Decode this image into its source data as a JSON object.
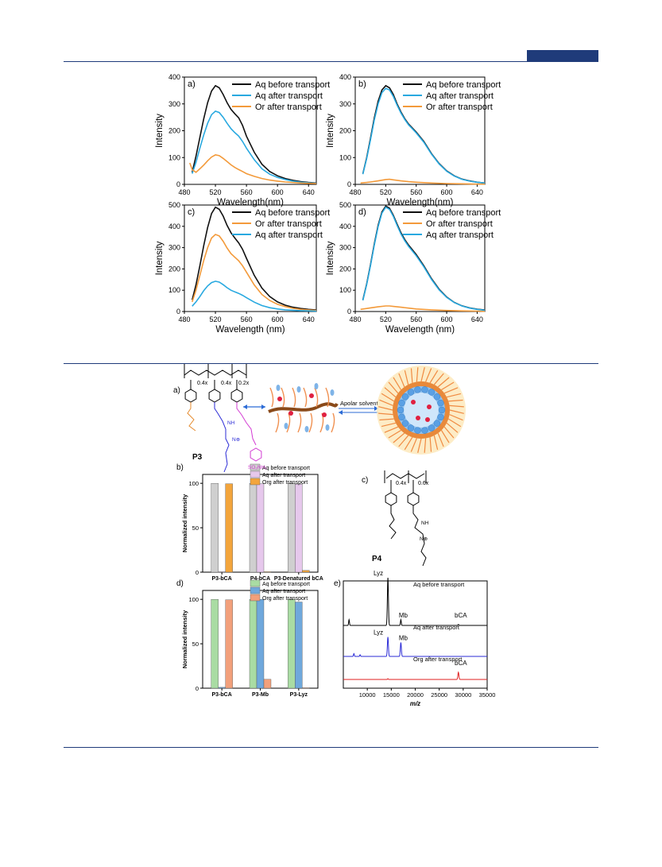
{
  "colors": {
    "black": "#111111",
    "blue": "#29a9e0",
    "orange": "#f39a3a",
    "rule": "#1f3b7a",
    "grey_bar": "#cfcfcf",
    "pink_bar": "#e6c8ec",
    "orange_bar": "#f3a53c",
    "green_bar": "#a9dca3",
    "blue_bar": "#6fa8dc",
    "salmon_bar": "#f2a07b",
    "ms_black": "#000000",
    "ms_blue": "#2b2bd6",
    "ms_red": "#e02020"
  },
  "chart_data": [
    {
      "panel": "a)",
      "type": "line",
      "xlabel": "Wavelength(nm)",
      "ylabel": "Intensity",
      "xlim": [
        480,
        650
      ],
      "ylim": [
        0,
        400
      ],
      "xticks": [
        "480",
        "520",
        "560",
        "600",
        "640"
      ],
      "yticks": [
        "0",
        "100",
        "200",
        "300",
        "400"
      ],
      "series": [
        {
          "name": "Aq before transport",
          "color": "black",
          "x": [
            490,
            495,
            500,
            505,
            510,
            515,
            520,
            525,
            530,
            535,
            540,
            545,
            550,
            555,
            560,
            570,
            580,
            590,
            600,
            610,
            620,
            630,
            640,
            650
          ],
          "y": [
            45,
            105,
            175,
            245,
            305,
            348,
            368,
            360,
            335,
            305,
            280,
            263,
            248,
            220,
            180,
            120,
            75,
            48,
            32,
            22,
            15,
            10,
            7,
            5
          ]
        },
        {
          "name": "Aq after transport",
          "color": "blue",
          "x": [
            490,
            495,
            500,
            505,
            510,
            515,
            520,
            525,
            530,
            535,
            540,
            545,
            550,
            555,
            560,
            570,
            580,
            590,
            600,
            610,
            620,
            630,
            640,
            650
          ],
          "y": [
            40,
            82,
            135,
            185,
            228,
            260,
            273,
            268,
            250,
            228,
            208,
            193,
            180,
            160,
            135,
            92,
            58,
            38,
            26,
            18,
            12,
            8,
            6,
            4
          ]
        },
        {
          "name": "Or after transport",
          "color": "orange",
          "x": [
            487,
            490,
            495,
            500,
            505,
            510,
            515,
            520,
            525,
            530,
            535,
            540,
            545,
            550,
            555,
            560,
            570,
            580,
            590,
            600,
            610,
            620,
            630,
            640,
            650
          ],
          "y": [
            80,
            55,
            45,
            58,
            72,
            88,
            102,
            110,
            107,
            97,
            85,
            73,
            63,
            55,
            48,
            40,
            30,
            22,
            16,
            12,
            9,
            7,
            5,
            4,
            3
          ]
        }
      ]
    },
    {
      "panel": "b)",
      "type": "line",
      "xlabel": "Wavelength(nm)",
      "ylabel": "Intensity",
      "xlim": [
        480,
        650
      ],
      "ylim": [
        0,
        400
      ],
      "xticks": [
        "480",
        "520",
        "560",
        "600",
        "640"
      ],
      "yticks": [
        "0",
        "100",
        "200",
        "300",
        "400"
      ],
      "series": [
        {
          "name": "Aq before transport",
          "color": "black",
          "x": [
            490,
            495,
            500,
            505,
            510,
            515,
            520,
            525,
            530,
            535,
            540,
            545,
            550,
            555,
            560,
            570,
            580,
            590,
            600,
            610,
            620,
            630,
            640,
            650
          ],
          "y": [
            40,
            100,
            172,
            248,
            310,
            352,
            368,
            360,
            335,
            300,
            270,
            245,
            225,
            210,
            195,
            160,
            115,
            78,
            50,
            32,
            20,
            13,
            8,
            5
          ]
        },
        {
          "name": "Aq after transport",
          "color": "blue",
          "x": [
            490,
            495,
            500,
            505,
            510,
            515,
            520,
            525,
            530,
            535,
            540,
            545,
            550,
            555,
            560,
            570,
            580,
            590,
            600,
            610,
            620,
            630,
            640,
            650
          ],
          "y": [
            38,
            96,
            166,
            240,
            300,
            342,
            358,
            352,
            328,
            295,
            266,
            242,
            222,
            207,
            192,
            157,
            113,
            76,
            49,
            31,
            19,
            12,
            8,
            5
          ]
        },
        {
          "name": "Or after transport",
          "color": "orange",
          "x": [
            487,
            495,
            500,
            510,
            520,
            525,
            530,
            540,
            550,
            560,
            580,
            600,
            620,
            640,
            650
          ],
          "y": [
            5,
            7,
            9,
            13,
            18,
            19,
            17,
            13,
            10,
            8,
            5,
            3,
            2,
            1,
            1
          ]
        }
      ]
    },
    {
      "panel": "c)",
      "type": "line",
      "xlabel": "Wavelength (nm)",
      "ylabel": "Intensity",
      "xlim": [
        480,
        650
      ],
      "ylim": [
        0,
        500
      ],
      "xticks": [
        "480",
        "520",
        "560",
        "600",
        "640"
      ],
      "yticks": [
        "0",
        "100",
        "200",
        "300",
        "400",
        "500"
      ],
      "series": [
        {
          "name": "Aq before transport",
          "color": "black",
          "x": [
            490,
            495,
            500,
            505,
            510,
            515,
            520,
            525,
            530,
            535,
            540,
            545,
            550,
            555,
            560,
            570,
            580,
            590,
            600,
            610,
            620,
            630,
            640,
            650
          ],
          "y": [
            55,
            125,
            215,
            310,
            395,
            460,
            490,
            480,
            448,
            405,
            370,
            345,
            322,
            292,
            250,
            170,
            110,
            70,
            45,
            30,
            20,
            14,
            10,
            7
          ]
        },
        {
          "name": "Or after transport",
          "color": "orange",
          "x": [
            490,
            495,
            500,
            505,
            510,
            515,
            520,
            525,
            530,
            535,
            540,
            545,
            550,
            555,
            560,
            570,
            580,
            590,
            600,
            610,
            620,
            630,
            640,
            650
          ],
          "y": [
            45,
            100,
            170,
            240,
            300,
            345,
            362,
            355,
            330,
            298,
            272,
            255,
            238,
            215,
            185,
            125,
            80,
            52,
            34,
            23,
            15,
            10,
            7,
            5
          ]
        },
        {
          "name": "Aq after transport",
          "color": "blue",
          "x": [
            490,
            495,
            500,
            505,
            510,
            515,
            520,
            525,
            530,
            535,
            540,
            545,
            550,
            555,
            560,
            570,
            580,
            590,
            600,
            610,
            620,
            630,
            640,
            650
          ],
          "y": [
            25,
            45,
            70,
            98,
            120,
            136,
            142,
            138,
            126,
            112,
            100,
            92,
            85,
            76,
            65,
            44,
            28,
            18,
            12,
            8,
            6,
            4,
            3,
            2
          ]
        }
      ]
    },
    {
      "panel": "d)",
      "type": "line",
      "xlabel": "Wavelength (nm)",
      "ylabel": "Intensity",
      "xlim": [
        480,
        650
      ],
      "ylim": [
        0,
        500
      ],
      "xticks": [
        "480",
        "520",
        "560",
        "600",
        "640"
      ],
      "yticks": [
        "0",
        "100",
        "200",
        "300",
        "400",
        "500"
      ],
      "series": [
        {
          "name": "Aq before transport",
          "color": "black",
          "x": [
            490,
            495,
            500,
            505,
            510,
            515,
            520,
            525,
            530,
            535,
            540,
            545,
            550,
            555,
            560,
            570,
            580,
            590,
            600,
            610,
            620,
            630,
            640,
            650
          ],
          "y": [
            55,
            130,
            220,
            318,
            405,
            468,
            495,
            485,
            452,
            410,
            370,
            338,
            312,
            290,
            268,
            215,
            155,
            105,
            68,
            43,
            27,
            17,
            11,
            7
          ]
        },
        {
          "name": "Or after transport",
          "color": "orange",
          "x": [
            487,
            495,
            500,
            510,
            520,
            525,
            530,
            540,
            550,
            560,
            580,
            600,
            620,
            640,
            650
          ],
          "y": [
            10,
            14,
            17,
            22,
            26,
            26,
            24,
            20,
            16,
            12,
            8,
            5,
            3,
            2,
            1
          ]
        },
        {
          "name": "Aq after transport",
          "color": "blue",
          "x": [
            490,
            495,
            500,
            505,
            510,
            515,
            520,
            525,
            530,
            535,
            540,
            545,
            550,
            555,
            560,
            570,
            580,
            590,
            600,
            610,
            620,
            630,
            640,
            650
          ],
          "y": [
            52,
            126,
            215,
            312,
            398,
            462,
            490,
            480,
            447,
            404,
            364,
            332,
            306,
            284,
            262,
            210,
            151,
            102,
            66,
            42,
            26,
            16,
            10,
            6
          ]
        }
      ]
    },
    {
      "panel": "b)",
      "type": "bar",
      "ylabel": "Normalized intensity",
      "ylim": [
        0,
        110
      ],
      "yticks": [
        "0",
        "50",
        "100"
      ],
      "categories": [
        "P3-bCA",
        "P4-bCA",
        "P3-Denatured bCA"
      ],
      "series": [
        {
          "name": "Aq before transport",
          "color": "grey_bar",
          "values": [
            100,
            100,
            100
          ]
        },
        {
          "name": "Aq after transport",
          "color": "pink_bar",
          "values": [
            0.5,
            99.5,
            99
          ]
        },
        {
          "name": "Org after transport",
          "color": "orange_bar",
          "values": [
            99.5,
            0.5,
            2
          ]
        }
      ]
    },
    {
      "panel": "d)",
      "type": "bar",
      "ylabel": "Normalized intensity",
      "ylim": [
        0,
        110
      ],
      "yticks": [
        "0",
        "50",
        "100"
      ],
      "categories": [
        "P3-bCA",
        "P3-Mb",
        "P3-Lyz"
      ],
      "series": [
        {
          "name": "Aq before transport",
          "color": "green_bar",
          "values": [
            100,
            100,
            100
          ]
        },
        {
          "name": "Aq after transport",
          "color": "blue_bar",
          "values": [
            1,
            100,
            97
          ]
        },
        {
          "name": "Org after transport",
          "color": "salmon_bar",
          "values": [
            99.5,
            10,
            0.5
          ]
        }
      ]
    },
    {
      "panel": "e)",
      "type": "line",
      "xlabel": "m/z",
      "xlim": [
        5000,
        35000
      ],
      "xticks": [
        "10000",
        "15000",
        "20000",
        "25000",
        "30000",
        "35000"
      ],
      "traces": [
        {
          "name": "Aq before transport",
          "color": "ms_black",
          "peaks": [
            {
              "x": 14300,
              "h": 1.0,
              "label": "Lyz"
            },
            {
              "x": 17000,
              "h": 0.12,
              "label": "Mb"
            },
            {
              "x": 29000,
              "h": 0.02,
              "label": "bCA"
            },
            {
              "x": 6200,
              "h": 0.12
            }
          ]
        },
        {
          "name": "Aq after transport",
          "color": "ms_blue",
          "peaks": [
            {
              "x": 14300,
              "h": 0.7,
              "label": "Lyz"
            },
            {
              "x": 17000,
              "h": 0.5,
              "label": "Mb"
            },
            {
              "x": 7200,
              "h": 0.1
            },
            {
              "x": 8500,
              "h": 0.06
            }
          ]
        },
        {
          "name": "Org after transport",
          "color": "ms_red",
          "peaks": [
            {
              "x": 29000,
              "h": 0.2,
              "label": "bCA"
            },
            {
              "x": 14300,
              "h": 0.02
            }
          ]
        }
      ]
    }
  ],
  "scheme": {
    "panel_label": "a)",
    "sub_04a": "0.4x",
    "sub_04b": "0.4x",
    "sub_02": "0.2x",
    "polymer_label": "P3",
    "so2nh2": "SO₂NH₂",
    "arrow_label": "Apolar solvent",
    "nh": "NH",
    "nplus": "N⊕"
  },
  "p4": {
    "panel_label": "c)",
    "sub_04": "0.4x",
    "sub_06": "0.6x",
    "label": "P4",
    "nh": "NH",
    "nplus": "N⊕"
  }
}
